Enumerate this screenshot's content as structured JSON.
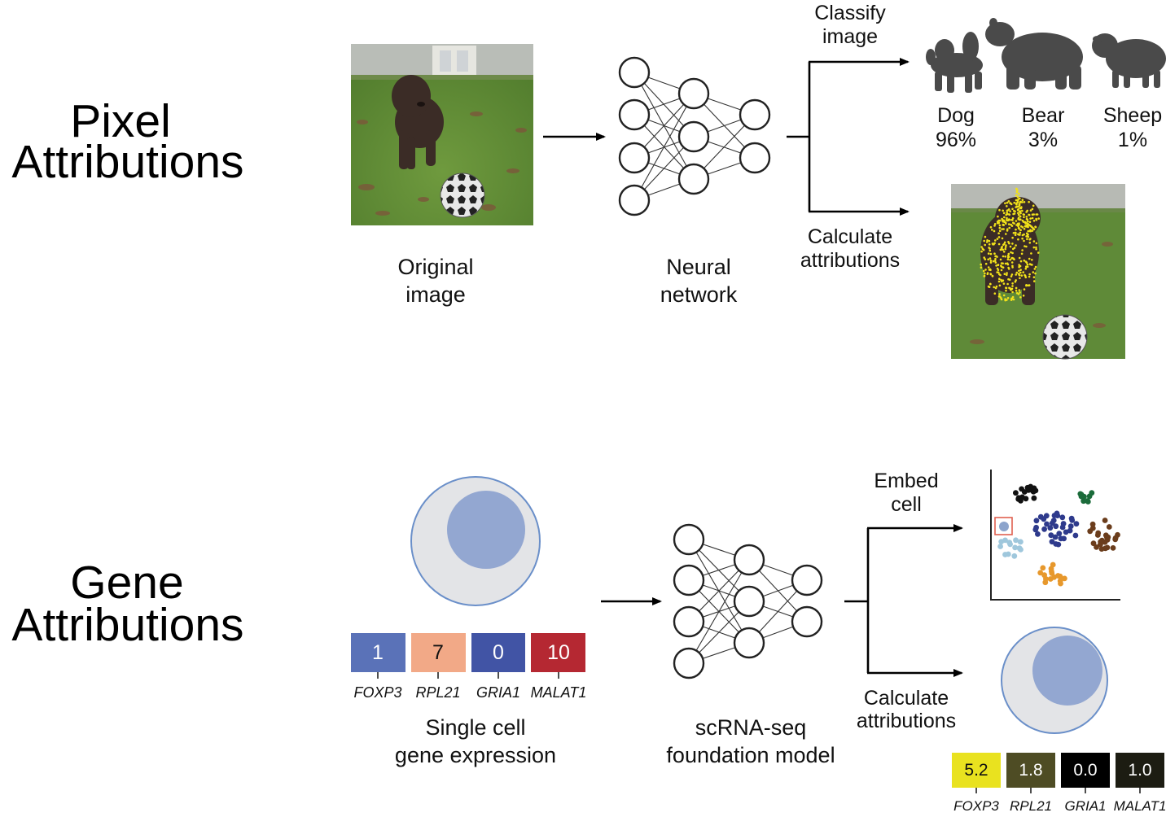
{
  "colors": {
    "gene_cells": [
      "#5a72b8",
      "#f2a987",
      "#4154a5",
      "#b52832"
    ],
    "attr_cells": [
      "#e9e21f",
      "#4e4c24",
      "#000000",
      "#1c1c12"
    ],
    "attr_text": [
      "#111111",
      "#ffffff",
      "#ffffff",
      "#ffffff"
    ],
    "attr_overlay": "#f2e21a",
    "cell_outer_fill": "#e3e4e7",
    "cell_outer_stroke": "#6a8fc9",
    "cell_nucleus": "#93a7d1",
    "animal_fill": "#4a4a4a",
    "clusters": [
      "#111111",
      "#1b6b3a",
      "#2e3a8c",
      "#6b3d1c",
      "#9fc7dc",
      "#e7982c"
    ],
    "highlight_box": "#e06050",
    "highlight_dot": "#8ca4cc"
  },
  "pixel": {
    "title_line1": "Pixel",
    "title_line2": "Attributions",
    "original_image_label_1": "Original",
    "original_image_label_2": "image",
    "network_label_1": "Neural",
    "network_label_2": "network",
    "classify_label_1": "Classify",
    "classify_label_2": "image",
    "calc_label_1": "Calculate",
    "calc_label_2": "attributions",
    "classes": [
      {
        "name": "Dog",
        "prob": "96%",
        "icon": "dog-icon"
      },
      {
        "name": "Bear",
        "prob": "3%",
        "icon": "bear-icon"
      },
      {
        "name": "Sheep",
        "prob": "1%",
        "icon": "sheep-icon"
      }
    ]
  },
  "gene": {
    "title_line1": "Gene",
    "title_line2": "Attributions",
    "expression": [
      {
        "gene": "FOXP3",
        "value": "1"
      },
      {
        "gene": "RPL21",
        "value": "7"
      },
      {
        "gene": "GRIA1",
        "value": "0"
      },
      {
        "gene": "MALAT1",
        "value": "10"
      }
    ],
    "single_cell_label_1": "Single cell",
    "single_cell_label_2": "gene expression",
    "model_label_1": "scRNA-seq",
    "model_label_2": "foundation model",
    "embed_label_1": "Embed",
    "embed_label_2": "cell",
    "calc_label_1": "Calculate",
    "calc_label_2": "attributions",
    "attributions": [
      {
        "gene": "FOXP3",
        "value": "5.2"
      },
      {
        "gene": "RPL21",
        "value": "1.8"
      },
      {
        "gene": "GRIA1",
        "value": "0.0"
      },
      {
        "gene": "MALAT1",
        "value": "1.0"
      }
    ]
  }
}
